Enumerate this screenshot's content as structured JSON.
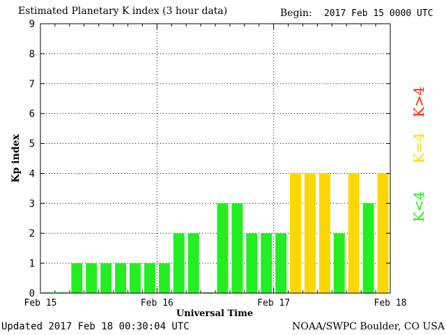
{
  "chart_data": {
    "type": "bar",
    "title": "Estimated Planetary K index (3 hour data)",
    "begin_label": "Begin:",
    "begin_value": "2017 Feb 15 0000 UTC",
    "xlabel": "Universal Time",
    "ylabel": "Kp index",
    "ylim": [
      0,
      9
    ],
    "yticks": [
      "0",
      "1",
      "2",
      "3",
      "4",
      "5",
      "6",
      "7",
      "8",
      "9"
    ],
    "xticks": [
      "Feb 15",
      "Feb 16",
      "Feb 17",
      "Feb 18"
    ],
    "bar_interval_hours": 3,
    "x_range_hours": [
      0,
      72
    ],
    "values": [
      0.03,
      0.03,
      1,
      1,
      1,
      1,
      1,
      1,
      1,
      2,
      2,
      0.03,
      3,
      3,
      2,
      2,
      2,
      4,
      4,
      4,
      2,
      4,
      3,
      4
    ],
    "legend": [
      {
        "label": "K<4",
        "color": "#22ee22"
      },
      {
        "label": "K=4",
        "color": "#ffd700"
      },
      {
        "label": "K>4",
        "color": "#ff2200"
      }
    ],
    "grid": true,
    "colors": {
      "low": "#22ee22",
      "equal": "#ffd700",
      "high": "#ff2200"
    }
  },
  "footer": {
    "updated": "Updated 2017 Feb 18 00:30:04 UTC",
    "source": "NOAA/SWPC Boulder, CO USA"
  }
}
